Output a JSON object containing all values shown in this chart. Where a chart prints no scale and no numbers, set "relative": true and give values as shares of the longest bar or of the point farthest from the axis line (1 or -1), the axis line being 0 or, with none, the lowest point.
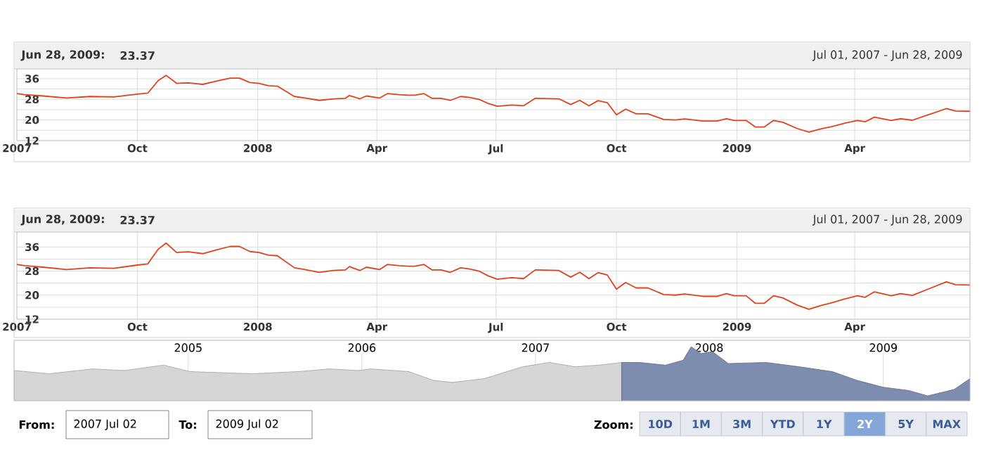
{
  "chart_data": [
    {
      "type": "line",
      "subtitle": "Jul 01, 2007 - Jun 28, 2009",
      "annotations": [
        "Jun 28, 2009:",
        "23.37"
      ],
      "series": [
        {
          "color": "#e4401c",
          "x": [
            "2007-07-01",
            "2007-07-07",
            "2007-07-21",
            "2007-08-08",
            "2007-08-26",
            "2007-09-13",
            "2007-10-01",
            "2007-10-09",
            "2007-10-17",
            "2007-10-23",
            "2007-10-31",
            "2007-11-09",
            "2007-11-20",
            "2007-12-01",
            "2007-12-11",
            "2007-12-18",
            "2007-12-26",
            "2008-01-02",
            "2008-01-09",
            "2008-01-16",
            "2008-01-29",
            "2008-02-06",
            "2008-02-17",
            "2008-02-28",
            "2008-03-08",
            "2008-03-11",
            "2008-03-19",
            "2008-03-24",
            "2008-03-29",
            "2008-04-03",
            "2008-04-09",
            "2008-04-18",
            "2008-04-25",
            "2008-04-30",
            "2008-05-07",
            "2008-05-13",
            "2008-05-20",
            "2008-05-27",
            "2008-06-04",
            "2008-06-11",
            "2008-06-18",
            "2008-06-25",
            "2008-07-02",
            "2008-07-13",
            "2008-07-22",
            "2008-07-31",
            "2008-08-18",
            "2008-08-27",
            "2008-09-03",
            "2008-09-10",
            "2008-09-17",
            "2008-09-24",
            "2008-10-01",
            "2008-10-08",
            "2008-10-16",
            "2008-10-25",
            "2008-11-06",
            "2008-11-15",
            "2008-11-22",
            "2008-12-06",
            "2008-12-17",
            "2008-12-24",
            "2008-12-30",
            "2009-01-08",
            "2009-01-15",
            "2009-01-22",
            "2009-01-29",
            "2009-02-05",
            "2009-02-16",
            "2009-02-25",
            "2009-03-06",
            "2009-03-15",
            "2009-03-24",
            "2009-04-03",
            "2009-04-09",
            "2009-04-16",
            "2009-04-29",
            "2009-05-06",
            "2009-05-15",
            "2009-05-27",
            "2009-06-10",
            "2009-06-17",
            "2009-06-28"
          ],
          "values": [
            30.2,
            29.8,
            29.3,
            28.5,
            29.1,
            28.9,
            30.0,
            30.4,
            35.3,
            37.3,
            34.2,
            34.4,
            33.8,
            35.1,
            36.2,
            36.2,
            34.5,
            34.2,
            33.3,
            33.1,
            29.1,
            28.5,
            27.6,
            28.2,
            28.4,
            29.5,
            28.2,
            29.3,
            28.9,
            28.5,
            30.2,
            29.8,
            29.6,
            29.6,
            30.2,
            28.4,
            28.4,
            27.6,
            29.1,
            28.7,
            28.0,
            26.4,
            25.3,
            25.8,
            25.5,
            28.4,
            28.2,
            26.0,
            27.6,
            25.5,
            27.5,
            26.7,
            22.0,
            24.2,
            22.4,
            22.4,
            20.2,
            20.0,
            20.4,
            19.6,
            19.6,
            20.5,
            19.8,
            19.8,
            17.3,
            17.3,
            19.8,
            19.1,
            16.7,
            15.3,
            16.5,
            17.5,
            18.7,
            19.8,
            19.3,
            21.1,
            19.8,
            20.5,
            19.9,
            22.0,
            24.4,
            23.5,
            23.37
          ]
        }
      ],
      "xlim": [
        "2007-07-01",
        "2009-06-28"
      ],
      "xticks": [
        {
          "value": "2007-07-01",
          "label": "2007"
        },
        {
          "value": "2007-10-01",
          "label": "Oct"
        },
        {
          "value": "2008-01-01",
          "label": "2008"
        },
        {
          "value": "2008-04-01",
          "label": "Apr"
        },
        {
          "value": "2008-07-01",
          "label": "Jul"
        },
        {
          "value": "2008-10-01",
          "label": "Oct"
        },
        {
          "value": "2009-01-01",
          "label": "2009"
        },
        {
          "value": "2009-04-01",
          "label": "Apr"
        }
      ],
      "ylim": [
        12,
        39.8
      ],
      "yticks": [
        12,
        {
          "value": 16,
          "label": null
        },
        20,
        {
          "value": 24,
          "label": null
        },
        28,
        {
          "value": 32,
          "label": null
        },
        36
      ],
      "grid": true
    },
    {
      "type": "line",
      "subtitle": "Jul 01, 2007 - Jun 28, 2009",
      "annotations": [
        "Jun 28, 2009:",
        "23.37"
      ],
      "series": [
        {
          "color": "#e4401c",
          "x": [
            "2007-07-01",
            "2007-07-07",
            "2007-07-21",
            "2007-08-08",
            "2007-08-26",
            "2007-09-13",
            "2007-10-01",
            "2007-10-09",
            "2007-10-17",
            "2007-10-23",
            "2007-10-31",
            "2007-11-09",
            "2007-11-20",
            "2007-12-01",
            "2007-12-11",
            "2007-12-18",
            "2007-12-26",
            "2008-01-02",
            "2008-01-09",
            "2008-01-16",
            "2008-01-29",
            "2008-02-06",
            "2008-02-17",
            "2008-02-28",
            "2008-03-08",
            "2008-03-11",
            "2008-03-19",
            "2008-03-24",
            "2008-03-29",
            "2008-04-03",
            "2008-04-09",
            "2008-04-18",
            "2008-04-25",
            "2008-04-30",
            "2008-05-07",
            "2008-05-13",
            "2008-05-20",
            "2008-05-27",
            "2008-06-04",
            "2008-06-11",
            "2008-06-18",
            "2008-06-25",
            "2008-07-02",
            "2008-07-13",
            "2008-07-22",
            "2008-07-31",
            "2008-08-18",
            "2008-08-27",
            "2008-09-03",
            "2008-09-10",
            "2008-09-17",
            "2008-09-24",
            "2008-10-01",
            "2008-10-08",
            "2008-10-16",
            "2008-10-25",
            "2008-11-06",
            "2008-11-15",
            "2008-11-22",
            "2008-12-06",
            "2008-12-17",
            "2008-12-24",
            "2008-12-30",
            "2009-01-08",
            "2009-01-15",
            "2009-01-22",
            "2009-01-29",
            "2009-02-05",
            "2009-02-16",
            "2009-02-25",
            "2009-03-06",
            "2009-03-15",
            "2009-03-24",
            "2009-04-03",
            "2009-04-09",
            "2009-04-16",
            "2009-04-29",
            "2009-05-06",
            "2009-05-15",
            "2009-05-27",
            "2009-06-10",
            "2009-06-17",
            "2009-06-28"
          ],
          "values": [
            30.2,
            29.8,
            29.3,
            28.5,
            29.1,
            28.9,
            30.0,
            30.4,
            35.3,
            37.3,
            34.2,
            34.4,
            33.8,
            35.1,
            36.2,
            36.2,
            34.5,
            34.2,
            33.3,
            33.1,
            29.1,
            28.5,
            27.6,
            28.2,
            28.4,
            29.5,
            28.2,
            29.3,
            28.9,
            28.5,
            30.2,
            29.8,
            29.6,
            29.6,
            30.2,
            28.4,
            28.4,
            27.6,
            29.1,
            28.7,
            28.0,
            26.4,
            25.3,
            25.8,
            25.5,
            28.4,
            28.2,
            26.0,
            27.6,
            25.5,
            27.5,
            26.7,
            22.0,
            24.2,
            22.4,
            22.4,
            20.2,
            20.0,
            20.4,
            19.6,
            19.6,
            20.5,
            19.8,
            19.8,
            17.3,
            17.3,
            19.8,
            19.1,
            16.7,
            15.3,
            16.5,
            17.5,
            18.7,
            19.8,
            19.3,
            21.1,
            19.8,
            20.5,
            19.9,
            22.0,
            24.4,
            23.5,
            23.37
          ]
        }
      ],
      "xlim": [
        "2007-07-01",
        "2009-06-28"
      ],
      "xticks": [
        {
          "value": "2007-07-01",
          "label": "2007"
        },
        {
          "value": "2007-10-01",
          "label": "Oct"
        },
        {
          "value": "2008-01-01",
          "label": "2008"
        },
        {
          "value": "2008-04-01",
          "label": "Apr"
        },
        {
          "value": "2008-07-01",
          "label": "Jul"
        },
        {
          "value": "2008-10-01",
          "label": "Oct"
        },
        {
          "value": "2009-01-01",
          "label": "2009"
        },
        {
          "value": "2009-04-01",
          "label": "Apr"
        }
      ],
      "ylim": [
        12,
        41
      ],
      "yticks": [
        12,
        {
          "value": 16,
          "label": null
        },
        20,
        {
          "value": 24,
          "label": null
        },
        28,
        {
          "value": 32,
          "label": null
        },
        36
      ],
      "grid": true
    },
    {
      "type": "area",
      "relative": true,
      "grid": "x",
      "annotations": [
        "From:",
        "2007 Jul 02",
        "To:",
        "2009 Jul 02",
        "Zoom:",
        "10D",
        "1M",
        "3M",
        "YTD",
        "1Y",
        "2Y",
        "5Y",
        "MAX"
      ],
      "series": [
        {
          "color": "#d6d6d6",
          "x": [
            "2004-01-01",
            "2004-03-15",
            "2004-06-15",
            "2004-08-20",
            "2004-11-10",
            "2005-01-05",
            "2005-05-15",
            "2005-08-20",
            "2005-10-25",
            "2005-12-25",
            "2006-01-20",
            "2006-04-10",
            "2006-05-30",
            "2006-07-10",
            "2006-09-15",
            "2006-12-05",
            "2007-01-30",
            "2007-03-25",
            "2007-05-15",
            "2007-07-01"
          ],
          "values": [
            0.56,
            0.5,
            0.59,
            0.56,
            0.66,
            0.54,
            0.5,
            0.54,
            0.59,
            0.56,
            0.59,
            0.54,
            0.38,
            0.34,
            0.41,
            0.63,
            0.71,
            0.63,
            0.66,
            0.71
          ]
        },
        {
          "color": "#7e8cb0",
          "x": [
            "2007-07-01",
            "2007-08-08",
            "2007-10-01",
            "2007-11-07",
            "2007-11-24",
            "2007-12-15",
            "2008-01-08",
            "2008-02-10",
            "2008-04-30",
            "2008-07-08",
            "2008-09-16",
            "2008-11-06",
            "2009-01-01",
            "2009-02-24",
            "2009-04-04",
            "2009-05-30",
            "2009-07-02"
          ],
          "values": [
            0.71,
            0.71,
            0.66,
            0.75,
            1.0,
            0.875,
            0.91,
            0.69,
            0.71,
            0.63,
            0.54,
            0.38,
            0.25,
            0.19,
            0.09,
            0.21,
            0.41
          ]
        }
      ],
      "xlim": [
        "2004-01-01",
        "2009-07-02"
      ],
      "xticks": [
        {
          "value": "2005-01-01",
          "label": "2005"
        },
        {
          "value": "2006-01-01",
          "label": "2006"
        },
        {
          "value": "2007-01-01",
          "label": "2007"
        },
        {
          "value": "2008-01-01",
          "label": "2008"
        },
        {
          "value": "2009-01-01",
          "label": "2009"
        }
      ]
    }
  ]
}
